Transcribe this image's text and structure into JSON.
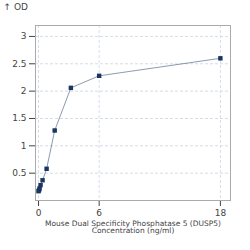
{
  "chart_data": {
    "type": "line",
    "xlabel": "Mouse Dual Specificity Phosphatase 5 (DUSP5)\nConcentration (ng/ml)",
    "ylabel": "OD",
    "x": [
      0,
      0.05,
      0.1,
      0.2,
      0.4,
      0.8,
      1.6,
      3.2,
      6,
      18
    ],
    "values": [
      0.17,
      0.19,
      0.22,
      0.28,
      0.37,
      0.58,
      1.28,
      2.06,
      2.28,
      2.6
    ],
    "color": "#1a3560",
    "marker": "square",
    "xlim": [
      -0.3,
      19
    ],
    "ylim": [
      0.0,
      3.2
    ],
    "xticks": [
      0,
      6,
      18
    ],
    "yticks": [
      0.5,
      1,
      1.5,
      2,
      2.5,
      3
    ],
    "grid": true
  }
}
